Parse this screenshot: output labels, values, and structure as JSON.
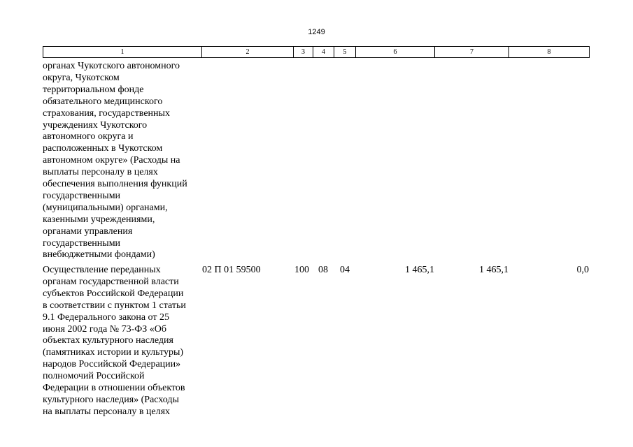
{
  "page_number": "1249",
  "header": [
    "1",
    "2",
    "3",
    "4",
    "5",
    "6",
    "7",
    "8"
  ],
  "rows": [
    {
      "name_lines": [
        "органах Чукотского автономного",
        "округа, Чукотском",
        "территориальном фонде",
        "обязательного медицинского",
        "страхования, государственных",
        "учреждениях Чукотского",
        "автономного округа и",
        "расположенных в Чукотском",
        "автономном округе» (Расходы на",
        "выплаты персоналу в целях",
        "обеспечения выполнения функций",
        "государственными",
        "(муниципальными) органами,",
        "казенными учреждениями,",
        "органами управления",
        "государственными",
        "внебюджетными фондами)"
      ]
    },
    {
      "name_lines": [
        "Осуществление переданных",
        "органам государственной власти",
        "субъектов Российской Федерации",
        "в соответствии с пунктом 1 статьи",
        "9.1 Федерального закона от 25",
        "июня 2002 года № 73-ФЗ «Об",
        "объектах культурного наследия",
        "(памятниках истории и культуры)",
        "народов Российской Федерации»",
        "полномочий Российской",
        "Федерации в отношении объектов",
        "культурного наследия» (Расходы",
        "на выплаты персоналу в целях"
      ],
      "cells": [
        "02 П 01 59500",
        "100",
        "08",
        "04",
        "1 465,1",
        "1 465,1",
        "0,0"
      ]
    }
  ]
}
